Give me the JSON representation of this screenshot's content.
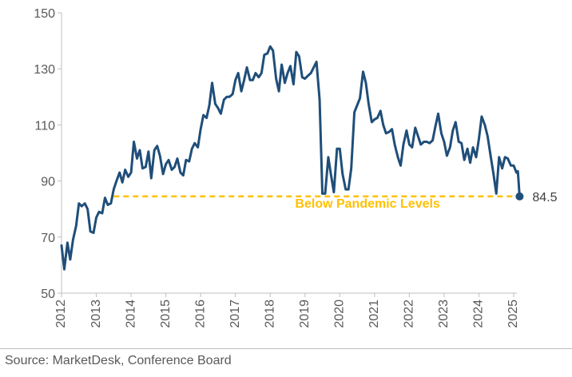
{
  "source": "Source: MarketDesk, Conference Board",
  "chart_data": {
    "type": "line",
    "title": "",
    "xlabel": "",
    "ylabel": "",
    "ylim": [
      50,
      150
    ],
    "xlim": [
      2012,
      2025.2
    ],
    "yticks": [
      50,
      70,
      90,
      110,
      130,
      150
    ],
    "xticks": [
      "2012",
      "2013",
      "2014",
      "2015",
      "2016",
      "2017",
      "2018",
      "2019",
      "2020",
      "2021",
      "2022",
      "2023",
      "2024",
      "2025"
    ],
    "grid": false,
    "legend": "none",
    "colors": {
      "line": "#1f4e79",
      "reference": "#ffc000",
      "annotation": "#ffc000"
    },
    "series": [
      {
        "values": [
          [
            2012.0,
            67
          ],
          [
            2012.08,
            58.5
          ],
          [
            2012.17,
            68
          ],
          [
            2012.25,
            62
          ],
          [
            2012.33,
            69
          ],
          [
            2012.42,
            74
          ],
          [
            2012.5,
            82
          ],
          [
            2012.58,
            81
          ],
          [
            2012.67,
            82
          ],
          [
            2012.75,
            80
          ],
          [
            2012.83,
            72
          ],
          [
            2012.92,
            71.5
          ],
          [
            2013.0,
            77
          ],
          [
            2013.08,
            79
          ],
          [
            2013.17,
            78.5
          ],
          [
            2013.25,
            84
          ],
          [
            2013.33,
            81.5
          ],
          [
            2013.42,
            82
          ],
          [
            2013.5,
            87
          ],
          [
            2013.58,
            90
          ],
          [
            2013.67,
            93
          ],
          [
            2013.75,
            89.5
          ],
          [
            2013.83,
            94
          ],
          [
            2013.92,
            91.5
          ],
          [
            2014.0,
            93
          ],
          [
            2014.08,
            104
          ],
          [
            2014.17,
            98
          ],
          [
            2014.25,
            101
          ],
          [
            2014.33,
            94.5
          ],
          [
            2014.42,
            95
          ],
          [
            2014.5,
            100.5
          ],
          [
            2014.58,
            91
          ],
          [
            2014.67,
            101
          ],
          [
            2014.75,
            102.5
          ],
          [
            2014.83,
            99
          ],
          [
            2014.92,
            92.5
          ],
          [
            2015.0,
            96
          ],
          [
            2015.08,
            97.5
          ],
          [
            2015.17,
            94
          ],
          [
            2015.25,
            95
          ],
          [
            2015.33,
            98
          ],
          [
            2015.42,
            93
          ],
          [
            2015.5,
            92
          ],
          [
            2015.58,
            97.5
          ],
          [
            2015.67,
            97
          ],
          [
            2015.75,
            101.5
          ],
          [
            2015.83,
            103.5
          ],
          [
            2015.92,
            102
          ],
          [
            2016.0,
            108.5
          ],
          [
            2016.08,
            113.5
          ],
          [
            2016.17,
            112.5
          ],
          [
            2016.25,
            117
          ],
          [
            2016.33,
            125
          ],
          [
            2016.42,
            117.5
          ],
          [
            2016.5,
            116
          ],
          [
            2016.58,
            114
          ],
          [
            2016.67,
            119
          ],
          [
            2016.75,
            120
          ],
          [
            2016.83,
            120
          ],
          [
            2016.92,
            121
          ],
          [
            2017.0,
            126
          ],
          [
            2017.08,
            128.5
          ],
          [
            2017.17,
            122
          ],
          [
            2017.25,
            126
          ],
          [
            2017.33,
            130.5
          ],
          [
            2017.42,
            126
          ],
          [
            2017.5,
            126
          ],
          [
            2017.58,
            128.5
          ],
          [
            2017.67,
            127
          ],
          [
            2017.75,
            128.5
          ],
          [
            2017.83,
            135
          ],
          [
            2017.92,
            135.5
          ],
          [
            2018.0,
            138
          ],
          [
            2018.08,
            136.5
          ],
          [
            2018.17,
            126.5
          ],
          [
            2018.25,
            122
          ],
          [
            2018.33,
            131.5
          ],
          [
            2018.42,
            125
          ],
          [
            2018.5,
            128.5
          ],
          [
            2018.58,
            131
          ],
          [
            2018.67,
            124.5
          ],
          [
            2018.75,
            136
          ],
          [
            2018.83,
            134.5
          ],
          [
            2018.92,
            127
          ],
          [
            2019.0,
            126.5
          ],
          [
            2019.08,
            127.5
          ],
          [
            2019.17,
            128.5
          ],
          [
            2019.25,
            130.5
          ],
          [
            2019.33,
            132.5
          ],
          [
            2019.42,
            119
          ],
          [
            2019.5,
            85.5
          ],
          [
            2019.58,
            85.5
          ],
          [
            2019.67,
            98.5
          ],
          [
            2019.75,
            92
          ],
          [
            2019.83,
            86
          ],
          [
            2019.92,
            101.5
          ],
          [
            2020.0,
            101.5
          ],
          [
            2020.08,
            92.5
          ],
          [
            2020.17,
            87
          ],
          [
            2020.25,
            87
          ],
          [
            2020.33,
            94.5
          ],
          [
            2020.42,
            114.5
          ],
          [
            2020.5,
            117
          ],
          [
            2020.58,
            119.5
          ],
          [
            2020.67,
            129
          ],
          [
            2020.75,
            125
          ],
          [
            2020.83,
            117.5
          ],
          [
            2020.92,
            111
          ],
          [
            2021.0,
            112
          ],
          [
            2021.08,
            112.5
          ],
          [
            2021.17,
            115
          ],
          [
            2021.25,
            110
          ],
          [
            2021.33,
            107
          ],
          [
            2021.42,
            107.5
          ],
          [
            2021.5,
            108.5
          ],
          [
            2021.58,
            103
          ],
          [
            2021.67,
            98.5
          ],
          [
            2021.75,
            95.5
          ],
          [
            2021.83,
            103
          ],
          [
            2021.92,
            108
          ],
          [
            2022.0,
            103
          ],
          [
            2022.08,
            102
          ],
          [
            2022.17,
            109
          ],
          [
            2022.25,
            106
          ],
          [
            2022.33,
            103
          ],
          [
            2022.42,
            104
          ],
          [
            2022.5,
            104
          ],
          [
            2022.58,
            103.5
          ],
          [
            2022.67,
            104.5
          ],
          [
            2022.75,
            109.5
          ],
          [
            2022.83,
            114
          ],
          [
            2022.92,
            107
          ],
          [
            2023.0,
            104
          ],
          [
            2023.08,
            99
          ],
          [
            2023.17,
            102
          ],
          [
            2023.25,
            108
          ],
          [
            2023.33,
            111
          ],
          [
            2023.42,
            104
          ],
          [
            2023.5,
            103.5
          ],
          [
            2023.58,
            97.5
          ],
          [
            2023.67,
            101.5
          ],
          [
            2023.75,
            96.5
          ],
          [
            2023.83,
            102
          ],
          [
            2023.92,
            98.5
          ],
          [
            2024.0,
            105
          ],
          [
            2024.08,
            113
          ],
          [
            2024.17,
            110
          ],
          [
            2024.25,
            106
          ],
          [
            2024.33,
            99.5
          ],
          [
            2024.42,
            92.5
          ],
          [
            2024.5,
            85.5
          ],
          [
            2024.58,
            98.5
          ],
          [
            2024.67,
            94.5
          ],
          [
            2024.75,
            98.5
          ],
          [
            2024.83,
            98
          ],
          [
            2024.92,
            95.5
          ],
          [
            2025.0,
            95.5
          ],
          [
            2025.08,
            93
          ],
          [
            2025.12,
            93.5
          ],
          [
            2025.17,
            84.5
          ]
        ]
      }
    ],
    "reference_line": {
      "y": 84.5,
      "x_start": 2013.5,
      "x_end": 2025.17,
      "style": "dashed"
    },
    "annotations": [
      {
        "text": "Below Pandemic Levels",
        "x": 2020.8,
        "y": 80.5
      }
    ],
    "end_label": {
      "text": "84.5",
      "x": 2025.17,
      "y": 84.5
    }
  }
}
